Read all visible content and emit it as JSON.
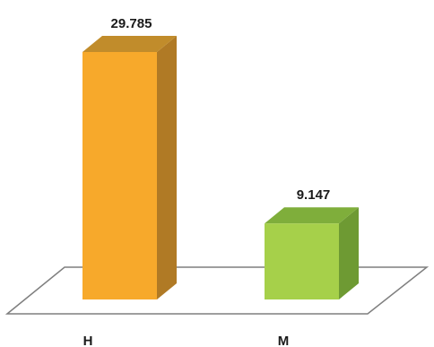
{
  "chart_data": {
    "type": "bar",
    "categories": [
      "H",
      "M"
    ],
    "values": [
      29.785,
      9.147
    ],
    "value_labels": [
      "29.785",
      "9.147"
    ],
    "ylim": [
      0,
      29.785
    ],
    "grid": false,
    "colors": {
      "H": {
        "front": "#F7A92B",
        "side": "#B07A25",
        "top": "#C18C2B"
      },
      "M": {
        "front": "#A6D04A",
        "side": "#6E9A33",
        "top": "#7FAE3B"
      },
      "floor_stroke": "#7F7F7F",
      "floor_fill": "#FFFFFF"
    }
  }
}
